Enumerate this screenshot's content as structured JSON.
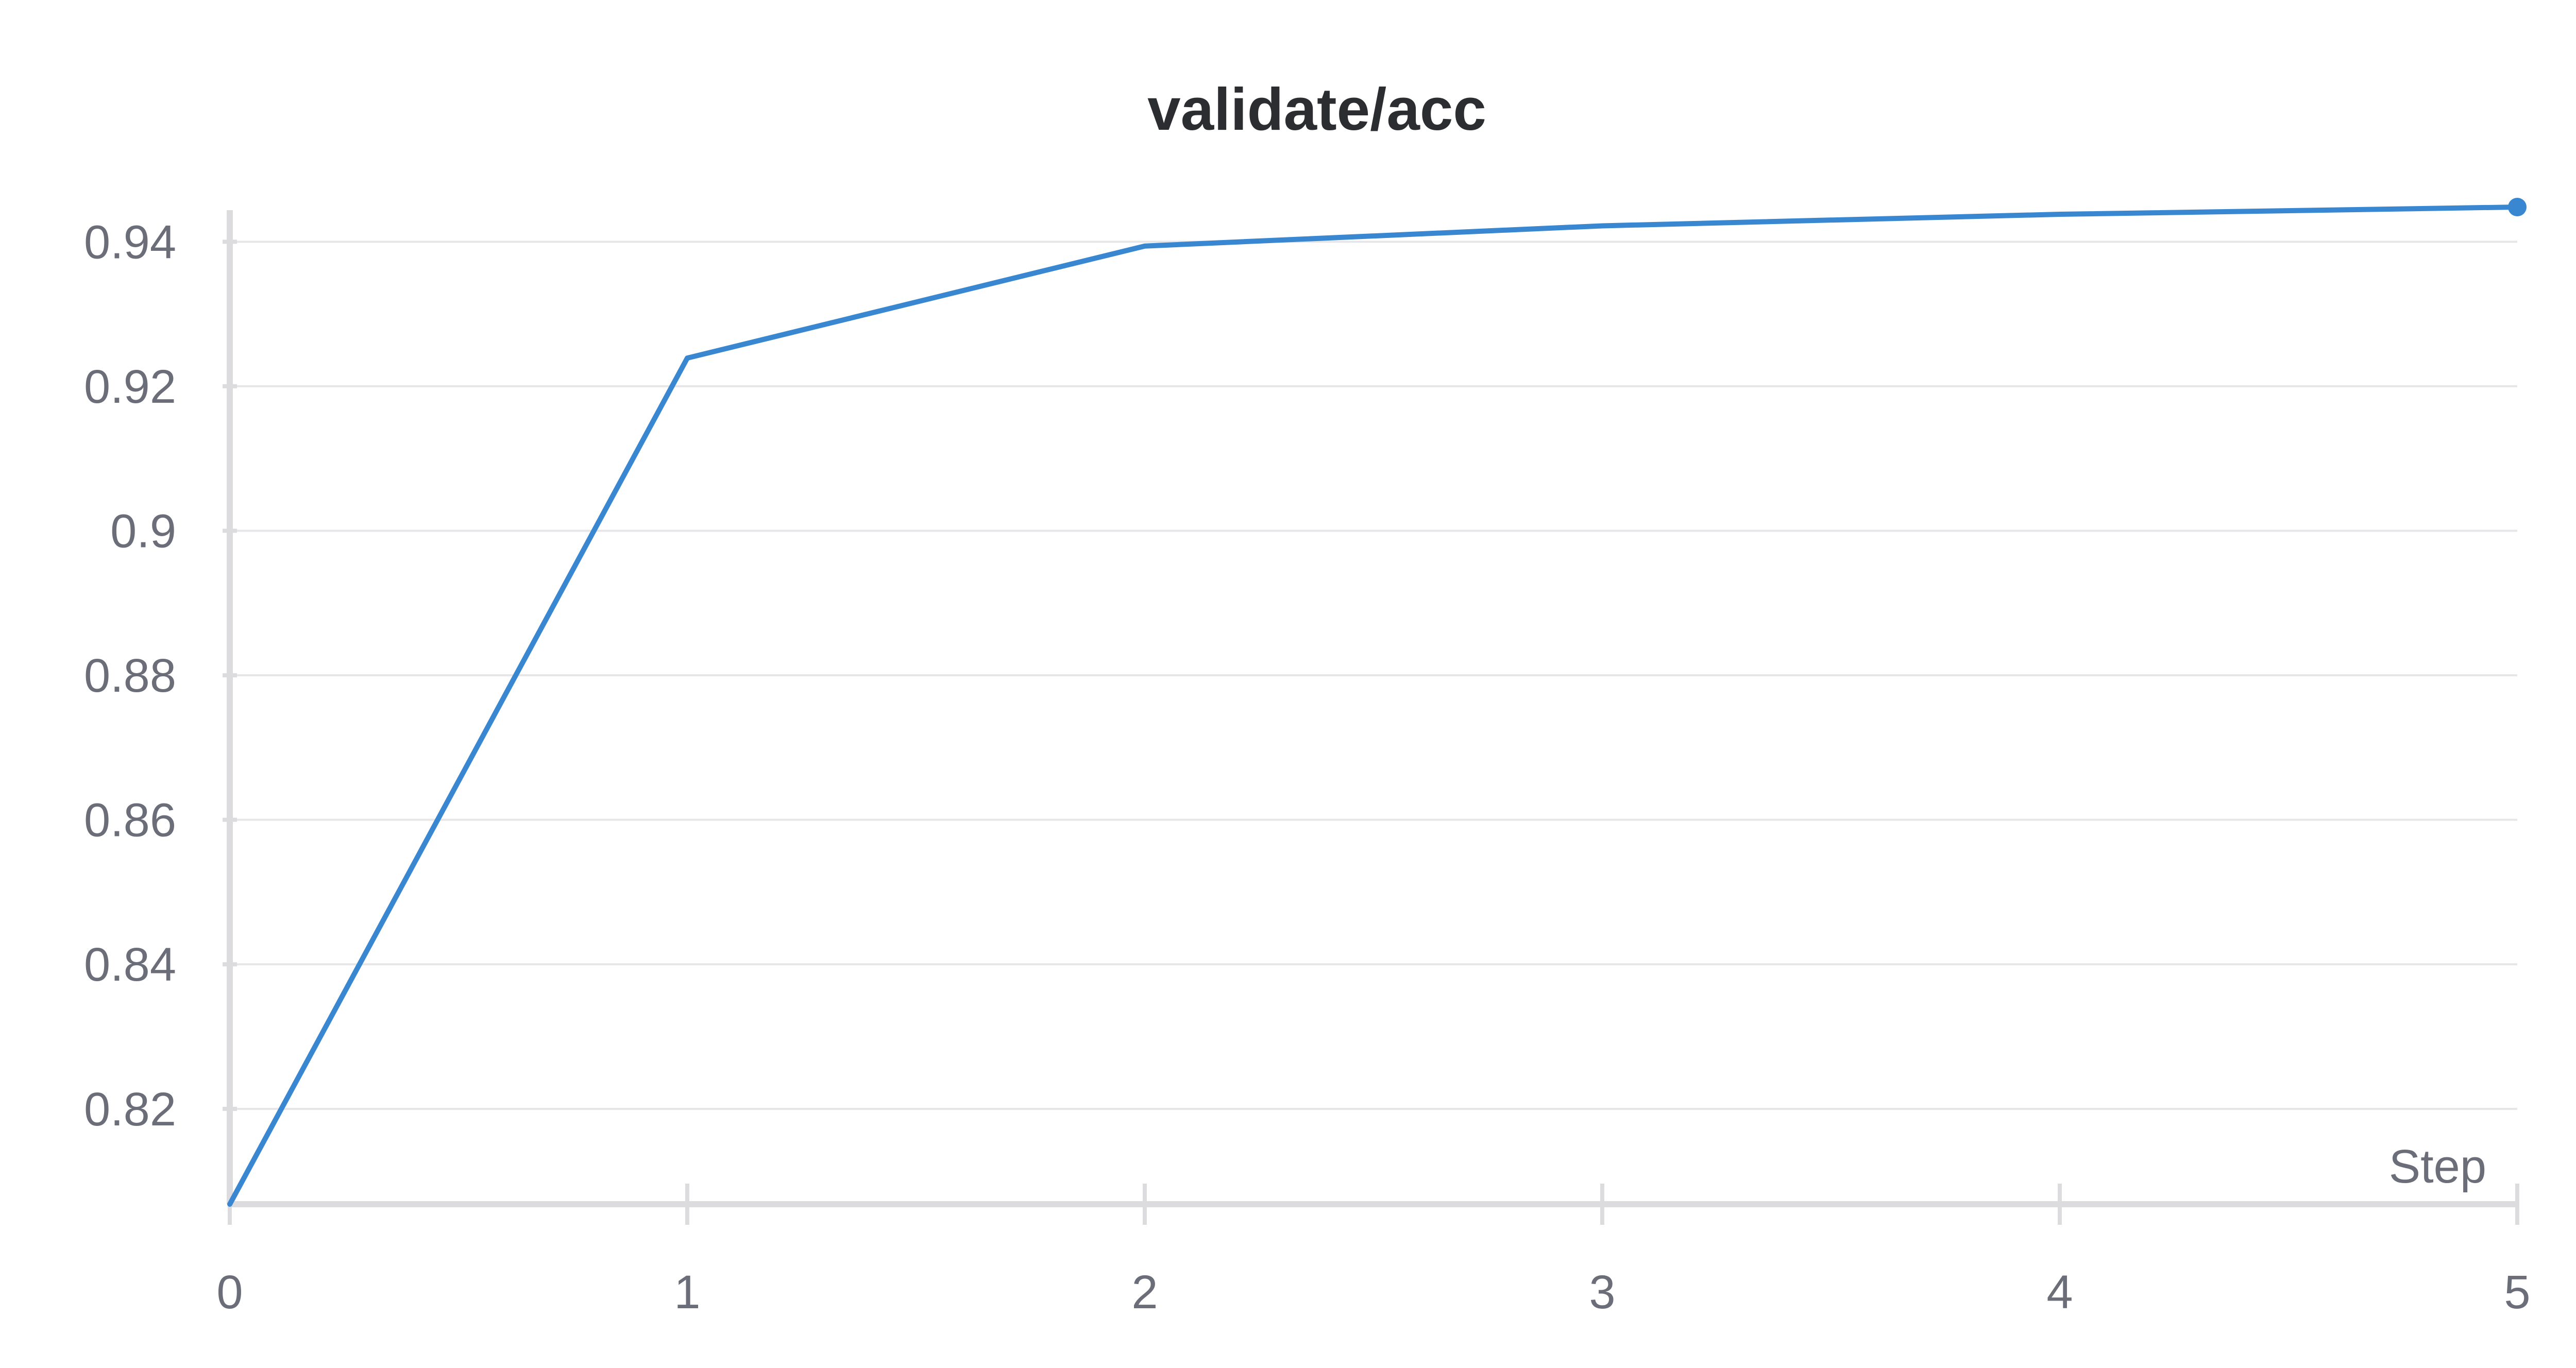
{
  "chart_data": {
    "type": "line",
    "title": "validate/acc",
    "xlabel": "Step",
    "ylabel": "",
    "x": [
      0,
      1,
      2,
      3,
      4,
      5
    ],
    "series": [
      {
        "values": [
          0.8068,
          0.9239,
          0.9394,
          0.9422,
          0.9438,
          0.9448
        ],
        "color": "#3a87d1"
      }
    ],
    "xlim": [
      0,
      5
    ],
    "ylim": [
      0.8068,
      0.9448
    ],
    "x_ticks": [
      0,
      1,
      2,
      3,
      4,
      5
    ],
    "x_tick_labels": [
      "0",
      "1",
      "2",
      "3",
      "4",
      "5"
    ],
    "y_ticks": [
      0.82,
      0.84,
      0.86,
      0.88,
      0.9,
      0.92,
      0.94
    ],
    "y_tick_labels": [
      "0.82",
      "0.84",
      "0.86",
      "0.88",
      "0.9",
      "0.92",
      "0.94"
    ],
    "grid": true,
    "legend": "none",
    "last_point_marker": true
  }
}
